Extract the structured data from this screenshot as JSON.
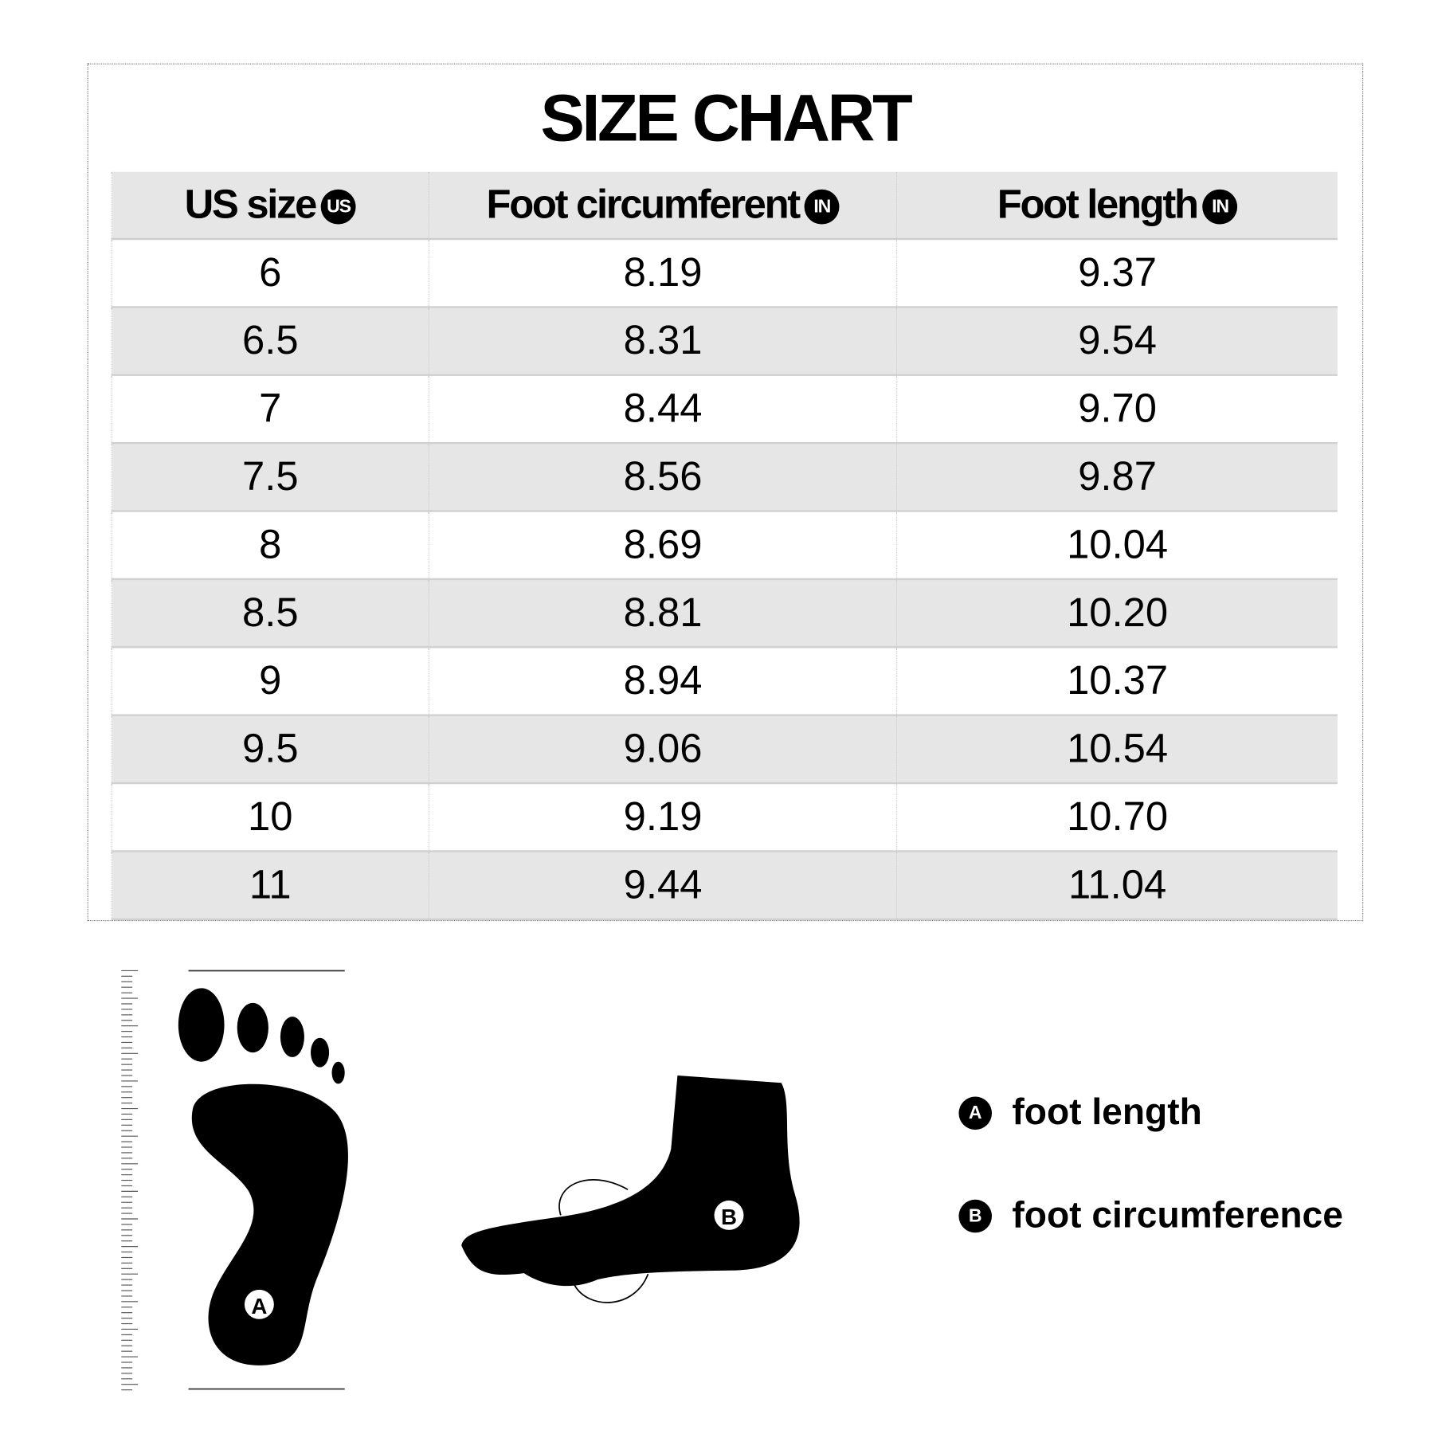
{
  "title": "SIZE CHART",
  "table": {
    "headers": [
      {
        "label": "US size",
        "badge": "US"
      },
      {
        "label": "Foot circumferent",
        "badge": "IN"
      },
      {
        "label": "Foot length",
        "badge": "IN"
      }
    ],
    "rows": [
      [
        "6",
        "8.19",
        "9.37"
      ],
      [
        "6.5",
        "8.31",
        "9.54"
      ],
      [
        "7",
        "8.44",
        "9.70"
      ],
      [
        "7.5",
        "8.56",
        "9.87"
      ],
      [
        "8",
        "8.69",
        "10.04"
      ],
      [
        "8.5",
        "8.81",
        "10.20"
      ],
      [
        "9",
        "8.94",
        "10.37"
      ],
      [
        "9.5",
        "9.06",
        "10.54"
      ],
      [
        "10",
        "9.19",
        "10.70"
      ],
      [
        "11",
        "9.44",
        "11.04"
      ]
    ]
  },
  "diagram": {
    "marker_a": "A",
    "marker_b": "B"
  },
  "legend": [
    {
      "marker": "A",
      "label": "foot length"
    },
    {
      "marker": "B",
      "label": "foot circumference"
    }
  ]
}
